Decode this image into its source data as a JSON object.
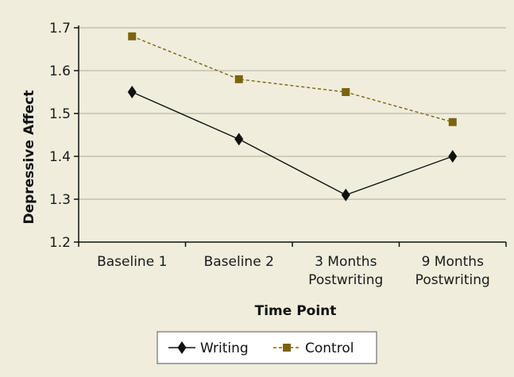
{
  "chart_data": {
    "type": "line",
    "categories": [
      [
        "Baseline 1"
      ],
      [
        "Baseline 2"
      ],
      [
        "3 Months",
        "Postwriting"
      ],
      [
        "9 Months",
        "Postwriting"
      ]
    ],
    "series": [
      {
        "name": "Writing",
        "values": [
          1.55,
          1.44,
          1.31,
          1.4
        ],
        "color": "#111111",
        "marker": "diamond",
        "line": "solid"
      },
      {
        "name": "Control",
        "values": [
          1.68,
          1.58,
          1.55,
          1.48
        ],
        "color": "#7a6410",
        "marker": "square",
        "line": "dashed"
      }
    ],
    "xlabel": "Time Point",
    "ylabel": "Depressive Affect",
    "ylim": [
      1.2,
      1.7
    ],
    "yticks": [
      1.2,
      1.3,
      1.4,
      1.5,
      1.6,
      1.7
    ],
    "ytick_labels": [
      "1.2",
      "1.3",
      "1.4",
      "1.5",
      "1.6",
      "1.7"
    ],
    "grid": true,
    "legend": "bottom-center",
    "background_color": "#f1eddc",
    "grid_color": "#b0ab9a"
  }
}
